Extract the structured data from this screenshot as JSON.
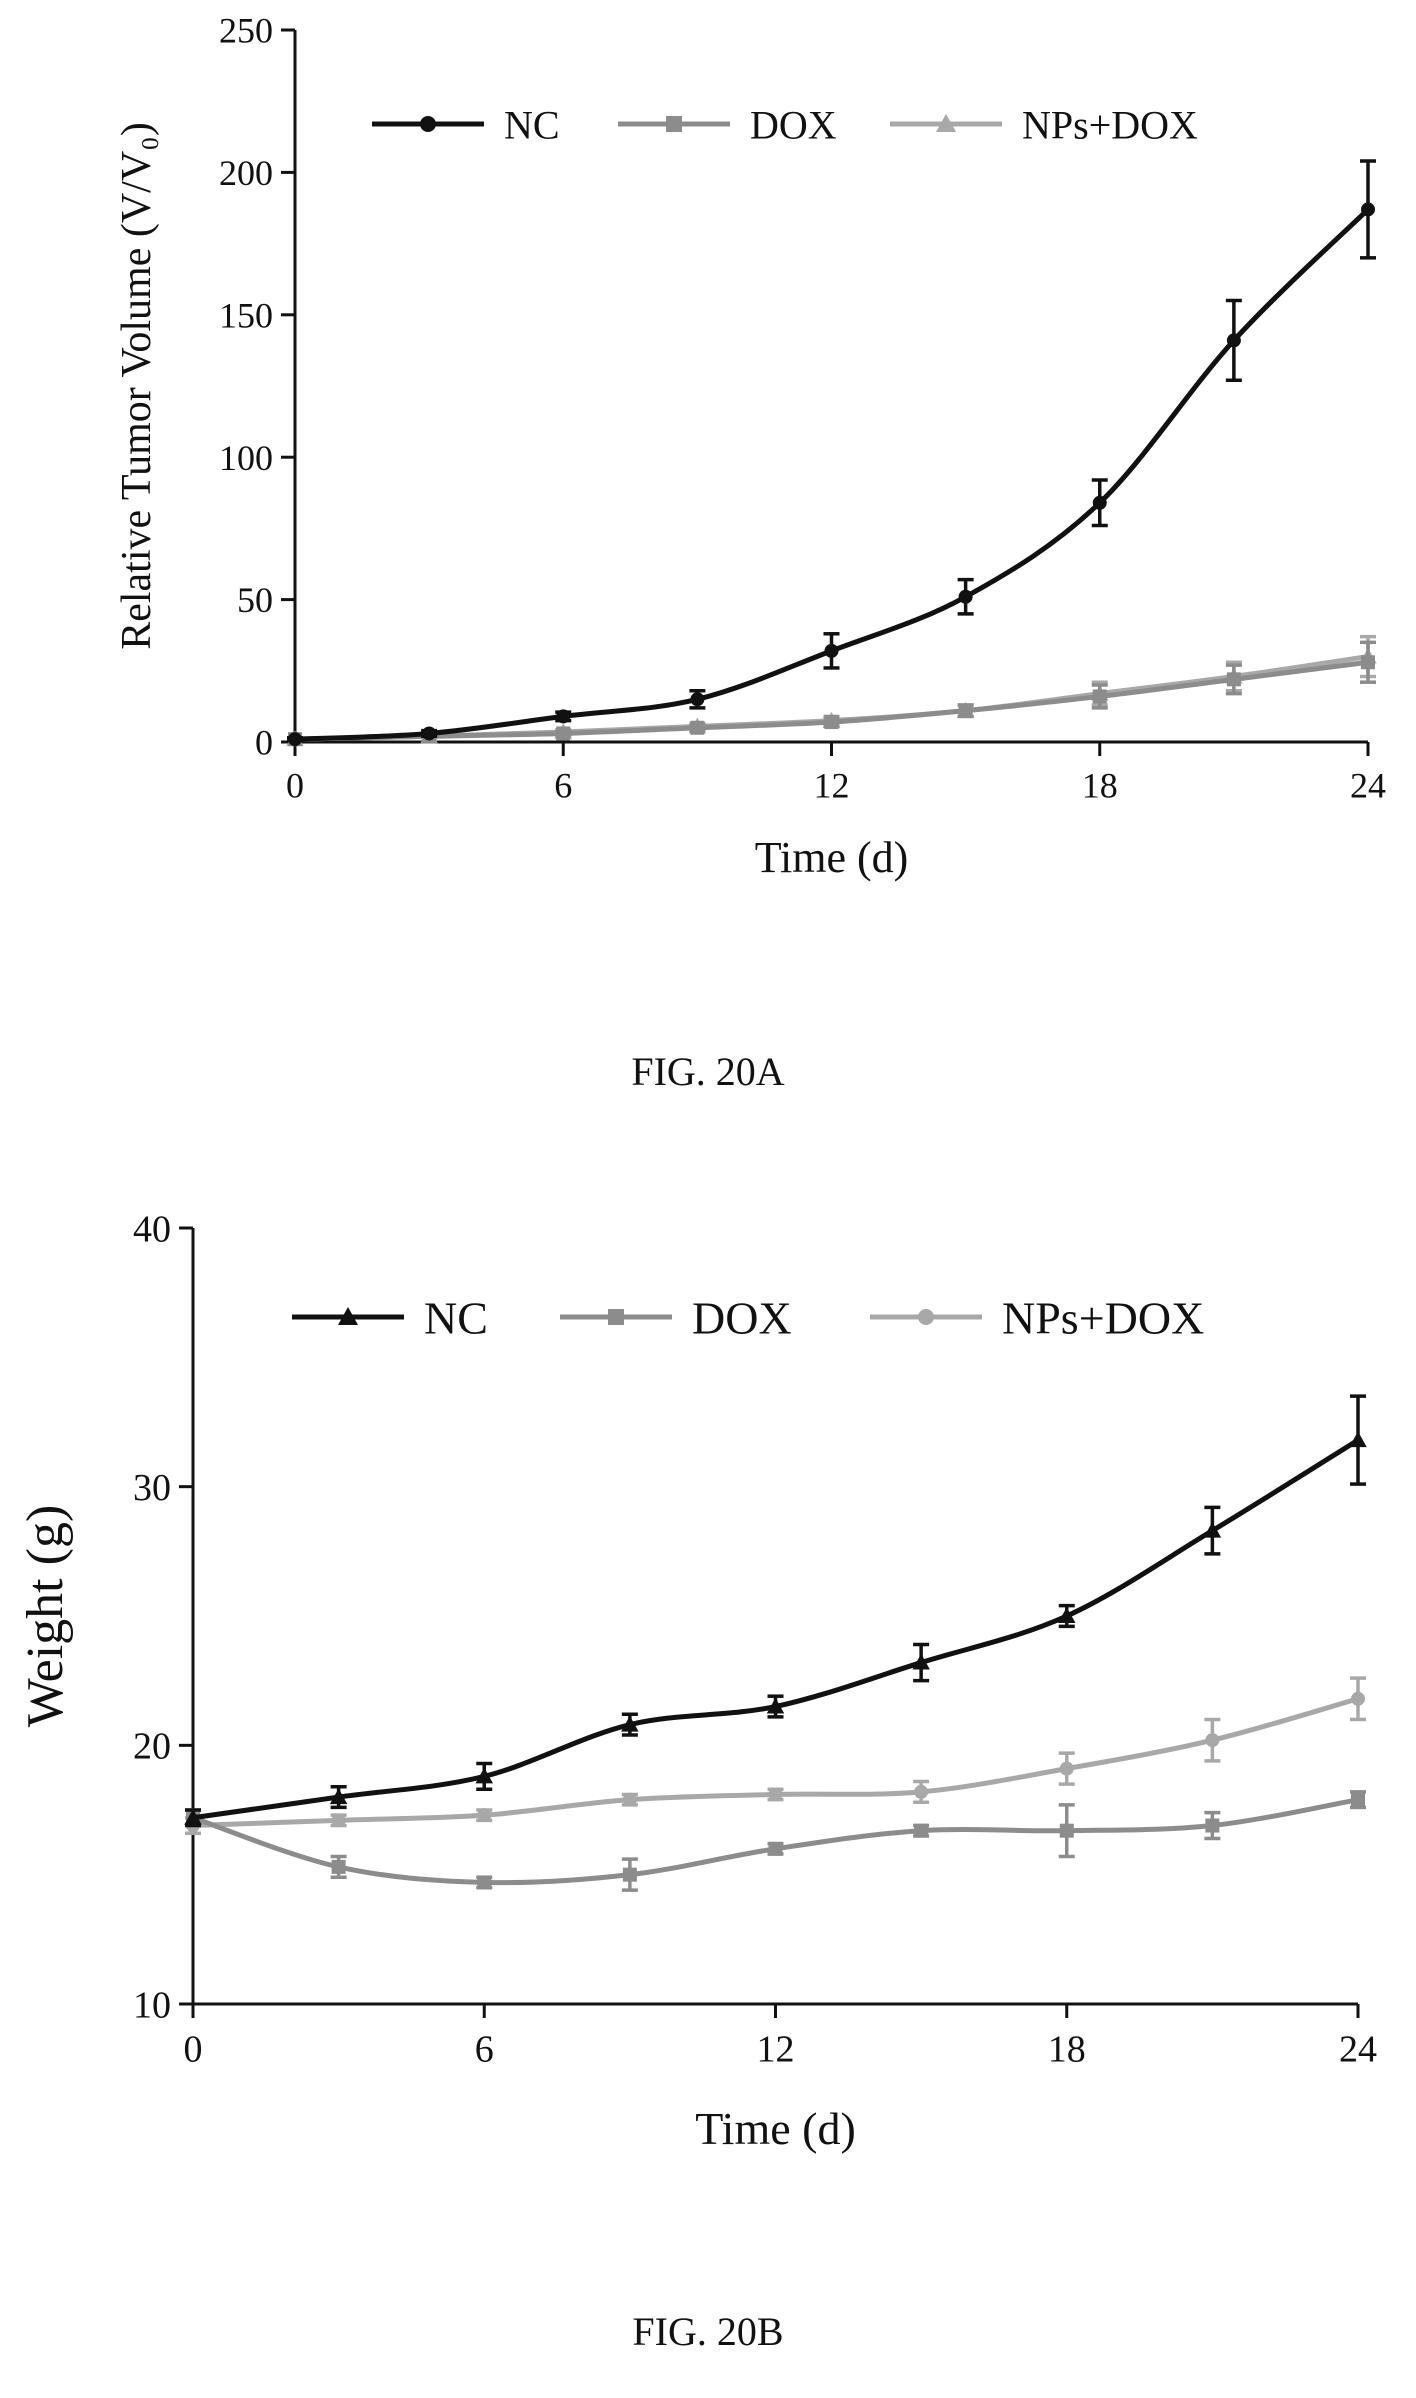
{
  "chart_data": [
    {
      "type": "line",
      "caption": "FIG. 20A",
      "xlabel": "Time (d)",
      "ylabel": "Relative Tumor Volume (V/V₀)",
      "xlim": [
        0,
        24
      ],
      "ylim": [
        0,
        250
      ],
      "xticks": [
        "0",
        "6",
        "12",
        "18",
        "24"
      ],
      "yticks": [
        "0",
        "50",
        "100",
        "150",
        "200",
        "250"
      ],
      "legend_position": "top",
      "grid": false,
      "x": [
        0,
        3,
        6,
        9,
        12,
        15,
        18,
        21,
        24
      ],
      "series": [
        {
          "name": "NC",
          "color": "#111111",
          "marker": "circle",
          "values": [
            1,
            3,
            9,
            15,
            32,
            51,
            84,
            141,
            187
          ],
          "errors": [
            0.5,
            1,
            1.5,
            3,
            6,
            6,
            8,
            14,
            17
          ]
        },
        {
          "name": "DOX",
          "color": "#8c8c8c",
          "marker": "square",
          "values": [
            1,
            2,
            3,
            5,
            7,
            11,
            16,
            22,
            28
          ],
          "errors": [
            0.3,
            0.5,
            0.8,
            1,
            1.5,
            2,
            4,
            5,
            7
          ]
        },
        {
          "name": "NPs+DOX",
          "color": "#a8a8a8",
          "marker": "triangle",
          "values": [
            1,
            2,
            3.5,
            5.5,
            7.5,
            11,
            17,
            23,
            30
          ],
          "errors": [
            0.3,
            0.5,
            0.8,
            1,
            1.5,
            2,
            4,
            5,
            7
          ]
        }
      ]
    },
    {
      "type": "line",
      "caption": "FIG. 20B",
      "xlabel": "Time (d)",
      "ylabel": "Weight (g)",
      "xlim": [
        0,
        24
      ],
      "ylim": [
        10,
        40
      ],
      "xticks": [
        "0",
        "6",
        "12",
        "18",
        "24"
      ],
      "yticks": [
        "10",
        "20",
        "30",
        "40"
      ],
      "legend_position": "top",
      "grid": false,
      "x": [
        0,
        3,
        6,
        9,
        12,
        15,
        18,
        21,
        24
      ],
      "series": [
        {
          "name": "NC",
          "color": "#111111",
          "marker": "triangle",
          "values": [
            17.2,
            18.0,
            18.8,
            20.8,
            21.5,
            23.2,
            25.0,
            28.3,
            31.8
          ],
          "errors": [
            0.3,
            0.4,
            0.5,
            0.4,
            0.4,
            0.7,
            0.4,
            0.9,
            1.7
          ]
        },
        {
          "name": "DOX",
          "color": "#8c8c8c",
          "marker": "square",
          "values": [
            17.2,
            15.3,
            14.7,
            15.0,
            16.0,
            16.7,
            16.7,
            16.9,
            17.9
          ],
          "errors": [
            0.3,
            0.4,
            0.2,
            0.6,
            0.2,
            0.2,
            1.0,
            0.5,
            0.3
          ]
        },
        {
          "name": "NPs+DOX",
          "color": "#a8a8a8",
          "marker": "circle",
          "values": [
            16.9,
            17.1,
            17.3,
            17.9,
            18.1,
            18.2,
            19.1,
            20.2,
            21.8
          ],
          "errors": [
            0.3,
            0.2,
            0.2,
            0.2,
            0.2,
            0.4,
            0.6,
            0.8,
            0.8
          ]
        }
      ]
    }
  ]
}
